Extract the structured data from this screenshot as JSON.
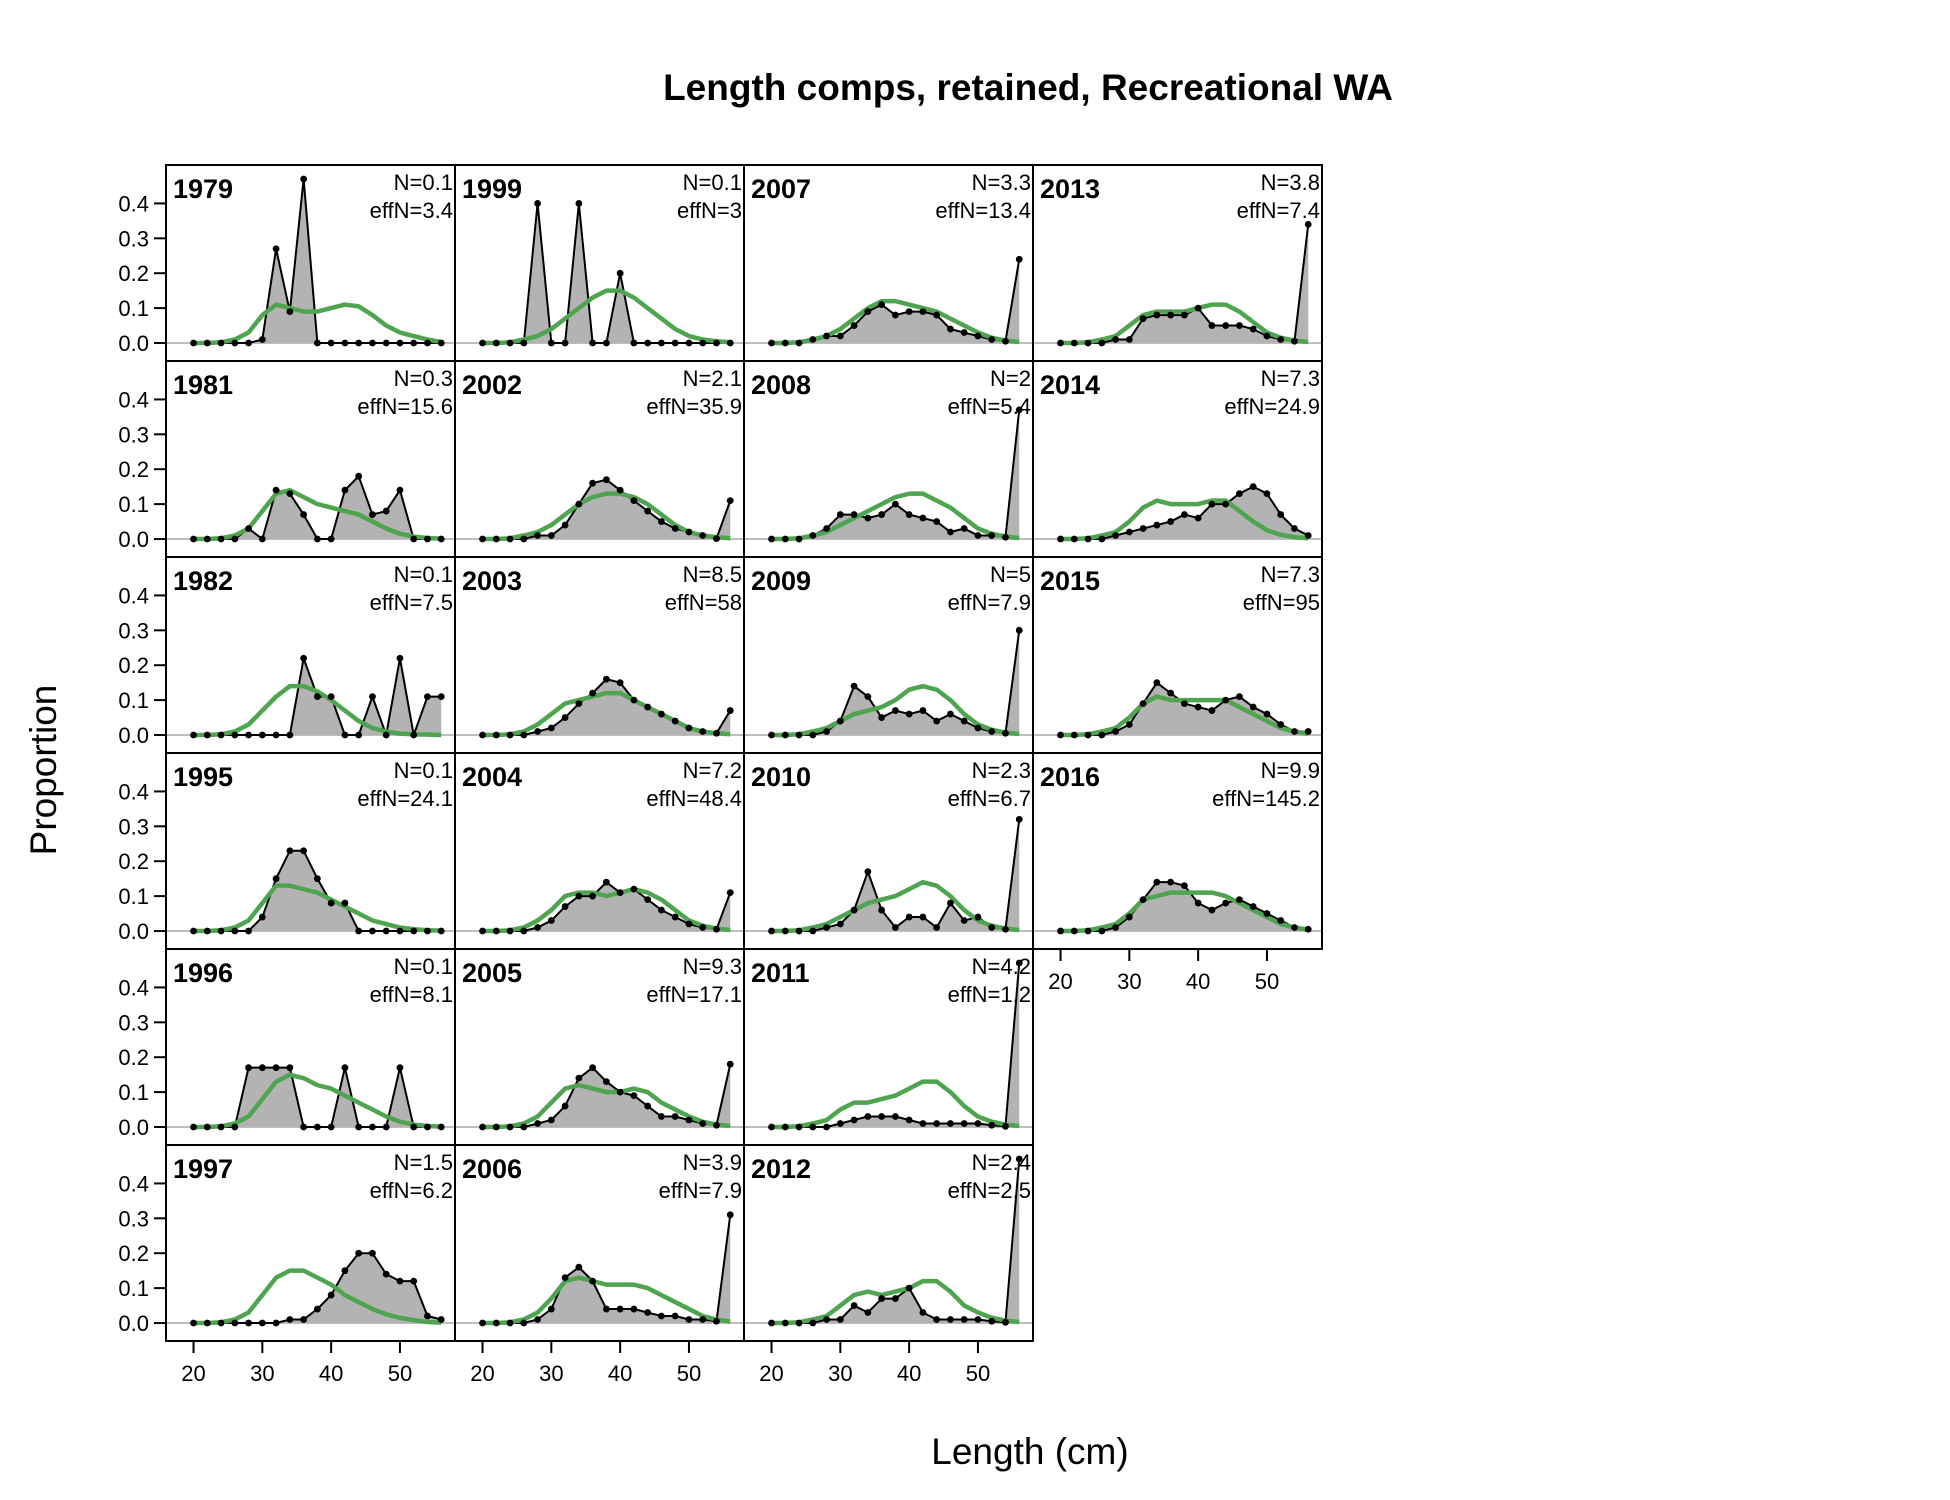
{
  "chart_data": {
    "type": "area",
    "title": "Length comps, retained, Recreational WA",
    "xlabel": "Length (cm)",
    "ylabel": "Proportion",
    "xlim": [
      16,
      58
    ],
    "ylim": [
      0,
      0.47
    ],
    "x_ticks": [
      20,
      30,
      40,
      50
    ],
    "y_ticks": [
      "0.0",
      "0.1",
      "0.2",
      "0.3",
      "0.4"
    ],
    "bins": [
      20,
      22,
      24,
      26,
      28,
      30,
      32,
      34,
      36,
      38,
      40,
      42,
      44,
      46,
      48,
      50,
      52,
      54,
      56
    ],
    "series_legend": [
      "observed (grey area, black points)",
      "expected (green line)"
    ],
    "panels": [
      {
        "year": "1979",
        "N": "N=0.1",
        "effN": "effN=3.4",
        "observed": [
          0,
          0,
          0,
          0,
          0,
          0.01,
          0.27,
          0.09,
          0.48,
          0,
          0,
          0,
          0,
          0,
          0,
          0,
          0,
          0,
          0
        ],
        "expected": [
          0,
          0,
          0.002,
          0.01,
          0.03,
          0.08,
          0.11,
          0.1,
          0.09,
          0.09,
          0.1,
          0.11,
          0.105,
          0.08,
          0.05,
          0.03,
          0.02,
          0.01,
          0.003
        ]
      },
      {
        "year": "1981",
        "N": "N=0.3",
        "effN": "effN=15.6",
        "observed": [
          0,
          0,
          0,
          0,
          0.03,
          0,
          0.14,
          0.13,
          0.07,
          0,
          0,
          0.14,
          0.18,
          0.07,
          0.08,
          0.14,
          0,
          0,
          0
        ],
        "expected": [
          0,
          0,
          0.002,
          0.01,
          0.03,
          0.08,
          0.13,
          0.14,
          0.12,
          0.1,
          0.09,
          0.08,
          0.07,
          0.05,
          0.03,
          0.015,
          0.007,
          0.003,
          0.001
        ]
      },
      {
        "year": "1982",
        "N": "N=0.1",
        "effN": "effN=7.5",
        "observed": [
          0,
          0,
          0,
          0,
          0,
          0,
          0,
          0,
          0.22,
          0.11,
          0.11,
          0,
          0,
          0.11,
          0,
          0.22,
          0,
          0.11,
          0.11
        ],
        "expected": [
          0,
          0,
          0.002,
          0.01,
          0.03,
          0.07,
          0.11,
          0.14,
          0.14,
          0.125,
          0.1,
          0.07,
          0.04,
          0.02,
          0.01,
          0.004,
          0.002,
          0.001,
          0
        ]
      },
      {
        "year": "1995",
        "N": "N=0.1",
        "effN": "effN=24.1",
        "observed": [
          0,
          0,
          0,
          0,
          0,
          0.04,
          0.15,
          0.23,
          0.23,
          0.15,
          0.08,
          0.08,
          0,
          0,
          0,
          0,
          0,
          0,
          0
        ],
        "expected": [
          0,
          0,
          0.002,
          0.01,
          0.03,
          0.08,
          0.13,
          0.13,
          0.12,
          0.11,
          0.09,
          0.07,
          0.05,
          0.03,
          0.02,
          0.01,
          0.005,
          0.002,
          0.001
        ]
      },
      {
        "year": "1996",
        "N": "N=0.1",
        "effN": "effN=8.1",
        "observed": [
          0,
          0,
          0,
          0,
          0.17,
          0.17,
          0.17,
          0.17,
          0,
          0,
          0,
          0.17,
          0,
          0,
          0,
          0.17,
          0,
          0,
          0
        ],
        "expected": [
          0,
          0,
          0.002,
          0.01,
          0.03,
          0.08,
          0.13,
          0.15,
          0.14,
          0.12,
          0.11,
          0.09,
          0.07,
          0.05,
          0.03,
          0.015,
          0.007,
          0.003,
          0.001
        ]
      },
      {
        "year": "1997",
        "N": "N=1.5",
        "effN": "effN=6.2",
        "observed": [
          0,
          0,
          0,
          0,
          0,
          0,
          0,
          0.01,
          0.01,
          0.04,
          0.08,
          0.15,
          0.2,
          0.2,
          0.14,
          0.12,
          0.12,
          0.02,
          0.01
        ],
        "expected": [
          0,
          0,
          0.002,
          0.01,
          0.03,
          0.08,
          0.13,
          0.15,
          0.15,
          0.13,
          0.11,
          0.08,
          0.06,
          0.04,
          0.025,
          0.015,
          0.008,
          0.003,
          0.001
        ]
      },
      {
        "year": "1999",
        "N": "N=0.1",
        "effN": "effN=3",
        "observed": [
          0,
          0,
          0,
          0,
          0.4,
          0,
          0,
          0.4,
          0,
          0,
          0.2,
          0,
          0,
          0,
          0,
          0,
          0,
          0,
          0
        ],
        "expected": [
          0,
          0,
          0.002,
          0.01,
          0.02,
          0.04,
          0.07,
          0.1,
          0.13,
          0.15,
          0.15,
          0.13,
          0.1,
          0.07,
          0.04,
          0.02,
          0.01,
          0.005,
          0.002
        ]
      },
      {
        "year": "2002",
        "N": "N=2.1",
        "effN": "effN=35.9",
        "observed": [
          0,
          0,
          0,
          0,
          0.01,
          0.01,
          0.04,
          0.1,
          0.16,
          0.17,
          0.14,
          0.11,
          0.08,
          0.05,
          0.03,
          0.02,
          0.01,
          0.001,
          0.11
        ],
        "expected": [
          0,
          0,
          0.002,
          0.01,
          0.02,
          0.04,
          0.07,
          0.1,
          0.12,
          0.13,
          0.13,
          0.12,
          0.1,
          0.07,
          0.04,
          0.02,
          0.01,
          0.005,
          0.002
        ]
      },
      {
        "year": "2003",
        "N": "N=8.5",
        "effN": "effN=58",
        "observed": [
          0,
          0,
          0,
          0,
          0.01,
          0.02,
          0.05,
          0.09,
          0.12,
          0.16,
          0.15,
          0.1,
          0.08,
          0.06,
          0.04,
          0.02,
          0.01,
          0.005,
          0.07
        ],
        "expected": [
          0,
          0,
          0.002,
          0.01,
          0.03,
          0.06,
          0.09,
          0.1,
          0.11,
          0.12,
          0.12,
          0.1,
          0.08,
          0.06,
          0.04,
          0.02,
          0.01,
          0.005,
          0.002
        ]
      },
      {
        "year": "2004",
        "N": "N=7.2",
        "effN": "effN=48.4",
        "observed": [
          0,
          0,
          0,
          0,
          0.01,
          0.03,
          0.07,
          0.1,
          0.1,
          0.14,
          0.11,
          0.12,
          0.09,
          0.06,
          0.04,
          0.02,
          0.01,
          0.005,
          0.11
        ],
        "expected": [
          0,
          0,
          0.002,
          0.01,
          0.03,
          0.06,
          0.1,
          0.11,
          0.11,
          0.1,
          0.11,
          0.12,
          0.11,
          0.09,
          0.06,
          0.03,
          0.015,
          0.007,
          0.003
        ]
      },
      {
        "year": "2005",
        "N": "N=9.3",
        "effN": "effN=17.1",
        "observed": [
          0,
          0,
          0,
          0,
          0.01,
          0.02,
          0.06,
          0.14,
          0.17,
          0.13,
          0.1,
          0.09,
          0.06,
          0.03,
          0.03,
          0.02,
          0.01,
          0.005,
          0.18
        ],
        "expected": [
          0,
          0,
          0.002,
          0.01,
          0.03,
          0.07,
          0.11,
          0.12,
          0.11,
          0.1,
          0.1,
          0.11,
          0.1,
          0.07,
          0.05,
          0.03,
          0.015,
          0.007,
          0.003
        ]
      },
      {
        "year": "2006",
        "N": "N=3.9",
        "effN": "effN=7.9",
        "observed": [
          0,
          0,
          0,
          0,
          0.01,
          0.04,
          0.13,
          0.16,
          0.12,
          0.04,
          0.04,
          0.04,
          0.03,
          0.02,
          0.02,
          0.01,
          0.01,
          0.005,
          0.31
        ],
        "expected": [
          0,
          0,
          0.002,
          0.01,
          0.03,
          0.07,
          0.12,
          0.13,
          0.12,
          0.11,
          0.11,
          0.11,
          0.1,
          0.08,
          0.06,
          0.04,
          0.02,
          0.01,
          0.004
        ]
      },
      {
        "year": "2007",
        "N": "N=3.3",
        "effN": "effN=13.4",
        "observed": [
          0,
          0,
          0,
          0.01,
          0.02,
          0.02,
          0.05,
          0.09,
          0.11,
          0.08,
          0.09,
          0.09,
          0.08,
          0.04,
          0.03,
          0.02,
          0.01,
          0.005,
          0.24
        ],
        "expected": [
          0,
          0,
          0.002,
          0.01,
          0.02,
          0.04,
          0.07,
          0.1,
          0.12,
          0.12,
          0.11,
          0.1,
          0.09,
          0.07,
          0.05,
          0.03,
          0.015,
          0.007,
          0.003
        ]
      },
      {
        "year": "2008",
        "N": "N=2",
        "effN": "effN=5.4",
        "observed": [
          0,
          0,
          0,
          0.01,
          0.03,
          0.07,
          0.07,
          0.06,
          0.07,
          0.1,
          0.07,
          0.06,
          0.05,
          0.02,
          0.03,
          0.01,
          0.01,
          0.005,
          0.37
        ],
        "expected": [
          0,
          0,
          0.002,
          0.01,
          0.02,
          0.04,
          0.06,
          0.08,
          0.1,
          0.12,
          0.13,
          0.13,
          0.11,
          0.09,
          0.06,
          0.03,
          0.015,
          0.007,
          0.003
        ]
      },
      {
        "year": "2009",
        "N": "N=5",
        "effN": "effN=7.9",
        "observed": [
          0,
          0,
          0,
          0,
          0.01,
          0.04,
          0.14,
          0.11,
          0.05,
          0.07,
          0.06,
          0.07,
          0.04,
          0.06,
          0.04,
          0.02,
          0.01,
          0.005,
          0.3
        ],
        "expected": [
          0,
          0,
          0.002,
          0.01,
          0.02,
          0.04,
          0.06,
          0.07,
          0.08,
          0.1,
          0.13,
          0.14,
          0.13,
          0.1,
          0.06,
          0.03,
          0.015,
          0.007,
          0.003
        ]
      },
      {
        "year": "2010",
        "N": "N=2.3",
        "effN": "effN=6.7",
        "observed": [
          0,
          0,
          0,
          0,
          0.01,
          0.02,
          0.06,
          0.17,
          0.06,
          0.01,
          0.04,
          0.04,
          0.01,
          0.08,
          0.03,
          0.04,
          0.01,
          0.005,
          0.32
        ],
        "expected": [
          0,
          0,
          0.002,
          0.01,
          0.02,
          0.04,
          0.06,
          0.08,
          0.09,
          0.1,
          0.12,
          0.14,
          0.13,
          0.1,
          0.06,
          0.03,
          0.015,
          0.007,
          0.003
        ]
      },
      {
        "year": "2011",
        "N": "N=4.2",
        "effN": "effN=1.2",
        "observed": [
          0,
          0,
          0,
          0,
          0,
          0.01,
          0.02,
          0.03,
          0.03,
          0.03,
          0.02,
          0.01,
          0.01,
          0.01,
          0.01,
          0.01,
          0.005,
          0.002,
          0.83
        ],
        "expected": [
          0,
          0,
          0.002,
          0.01,
          0.02,
          0.05,
          0.07,
          0.07,
          0.08,
          0.09,
          0.11,
          0.13,
          0.13,
          0.1,
          0.06,
          0.03,
          0.015,
          0.007,
          0.003
        ]
      },
      {
        "year": "2012",
        "N": "N=2.4",
        "effN": "effN=2.5",
        "observed": [
          0,
          0,
          0,
          0,
          0.01,
          0.01,
          0.05,
          0.03,
          0.07,
          0.07,
          0.1,
          0.03,
          0.01,
          0.01,
          0.01,
          0.01,
          0.005,
          0.002,
          0.55
        ],
        "expected": [
          0,
          0,
          0.002,
          0.01,
          0.02,
          0.05,
          0.08,
          0.09,
          0.08,
          0.09,
          0.1,
          0.12,
          0.12,
          0.09,
          0.05,
          0.03,
          0.015,
          0.007,
          0.003
        ]
      },
      {
        "year": "2013",
        "N": "N=3.8",
        "effN": "effN=7.4",
        "observed": [
          0,
          0,
          0,
          0,
          0.01,
          0.01,
          0.07,
          0.08,
          0.08,
          0.08,
          0.1,
          0.05,
          0.05,
          0.05,
          0.04,
          0.02,
          0.01,
          0.005,
          0.34
        ],
        "expected": [
          0,
          0,
          0.002,
          0.01,
          0.02,
          0.05,
          0.08,
          0.09,
          0.09,
          0.09,
          0.1,
          0.11,
          0.11,
          0.09,
          0.06,
          0.03,
          0.015,
          0.007,
          0.003
        ]
      },
      {
        "year": "2014",
        "N": "N=7.3",
        "effN": "effN=24.9",
        "observed": [
          0,
          0,
          0,
          0,
          0.01,
          0.02,
          0.03,
          0.04,
          0.05,
          0.07,
          0.06,
          0.1,
          0.1,
          0.13,
          0.15,
          0.13,
          0.07,
          0.03,
          0.01
        ],
        "expected": [
          0,
          0,
          0.002,
          0.01,
          0.02,
          0.05,
          0.09,
          0.11,
          0.1,
          0.1,
          0.1,
          0.11,
          0.11,
          0.08,
          0.05,
          0.025,
          0.012,
          0.005,
          0.002
        ]
      },
      {
        "year": "2015",
        "N": "N=7.3",
        "effN": "effN=95",
        "observed": [
          0,
          0,
          0,
          0,
          0.01,
          0.03,
          0.09,
          0.15,
          0.12,
          0.09,
          0.08,
          0.07,
          0.1,
          0.11,
          0.08,
          0.06,
          0.03,
          0.01,
          0.01
        ],
        "expected": [
          0,
          0,
          0.002,
          0.01,
          0.02,
          0.05,
          0.09,
          0.11,
          0.1,
          0.1,
          0.1,
          0.1,
          0.1,
          0.08,
          0.06,
          0.04,
          0.02,
          0.01,
          0.004
        ]
      },
      {
        "year": "2016",
        "N": "N=9.9",
        "effN": "effN=145.2",
        "observed": [
          0,
          0,
          0,
          0,
          0.01,
          0.04,
          0.09,
          0.14,
          0.14,
          0.13,
          0.08,
          0.06,
          0.08,
          0.09,
          0.07,
          0.05,
          0.03,
          0.01,
          0.005
        ],
        "expected": [
          0,
          0,
          0.002,
          0.01,
          0.02,
          0.05,
          0.09,
          0.1,
          0.11,
          0.11,
          0.11,
          0.11,
          0.1,
          0.08,
          0.06,
          0.04,
          0.02,
          0.01,
          0.004
        ]
      }
    ],
    "grid": false,
    "legend": "none"
  }
}
